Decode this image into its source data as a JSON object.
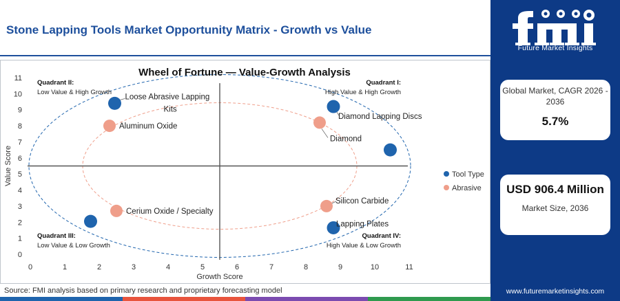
{
  "header": {
    "title": "Stone Lapping Tools Market Opportunity Matrix - Growth vs Value"
  },
  "chart_data": {
    "type": "scatter",
    "title": "Wheel of Fortune — Value-Growth Analysis",
    "xlabel": "Growth Score",
    "ylabel": "Value Score",
    "xlim": [
      0,
      11
    ],
    "ylim": [
      0,
      11
    ],
    "xticks": [
      "0",
      "1",
      "2",
      "3",
      "4",
      "5",
      "6",
      "7",
      "8",
      "9",
      "10",
      "11"
    ],
    "yticks": [
      "0",
      "1",
      "2",
      "3",
      "4",
      "5",
      "6",
      "7",
      "8",
      "9",
      "10",
      "11"
    ],
    "divider": {
      "x": 5.5,
      "y": 5.5
    },
    "legend_position": "right",
    "quadrants": [
      {
        "name": "Quadrant II:",
        "desc": "Low Value & High Growth",
        "position": "top-left"
      },
      {
        "name": "Quadrant I:",
        "desc": "High Value & High Growth",
        "position": "top-right"
      },
      {
        "name": "Quadrant III:",
        "desc": "Low Value & Low Growth",
        "position": "bottom-left"
      },
      {
        "name": "Quadrant IV:",
        "desc": "High Value & Low Growth",
        "position": "bottom-right"
      }
    ],
    "series": [
      {
        "name": "Tool Type",
        "color": "#1f64ad",
        "points": [
          {
            "label": "Loose Abrasive Lapping Kits",
            "x": 2.45,
            "y": 9.4
          },
          {
            "label": "Diamond Lapping Discs",
            "x": 8.8,
            "y": 9.2
          },
          {
            "label": "",
            "x": 10.45,
            "y": 6.5
          },
          {
            "label": "",
            "x": 1.75,
            "y": 2.05
          },
          {
            "label": "Lapping Plates",
            "x": 8.8,
            "y": 1.65
          }
        ]
      },
      {
        "name": "Abrasive",
        "color": "#ef9e8a",
        "points": [
          {
            "label": "Aluminum Oxide",
            "x": 2.3,
            "y": 8.0
          },
          {
            "label": "Diamond",
            "x": 8.4,
            "y": 8.2
          },
          {
            "label": "Cerium Oxide / Specialty",
            "x": 2.5,
            "y": 2.7
          },
          {
            "label": "Silicon Carbide",
            "x": 8.6,
            "y": 3.0
          }
        ]
      }
    ]
  },
  "footer": {
    "source": "Source: FMI analysis based on primary research and proprietary forecasting model",
    "bar_colors": [
      "#1f64ad",
      "#e8543d",
      "#7b4bb0",
      "#2f9a4e"
    ]
  },
  "sidebar": {
    "logo_text": "Future Market Insights",
    "cagr_label": "Global Market, CAGR 2026 - 2036",
    "cagr_value": "5.7%",
    "size_value": "USD 906.4 Million",
    "size_label": "Market Size, 2036",
    "website": "www.futuremarketinsights.com"
  }
}
